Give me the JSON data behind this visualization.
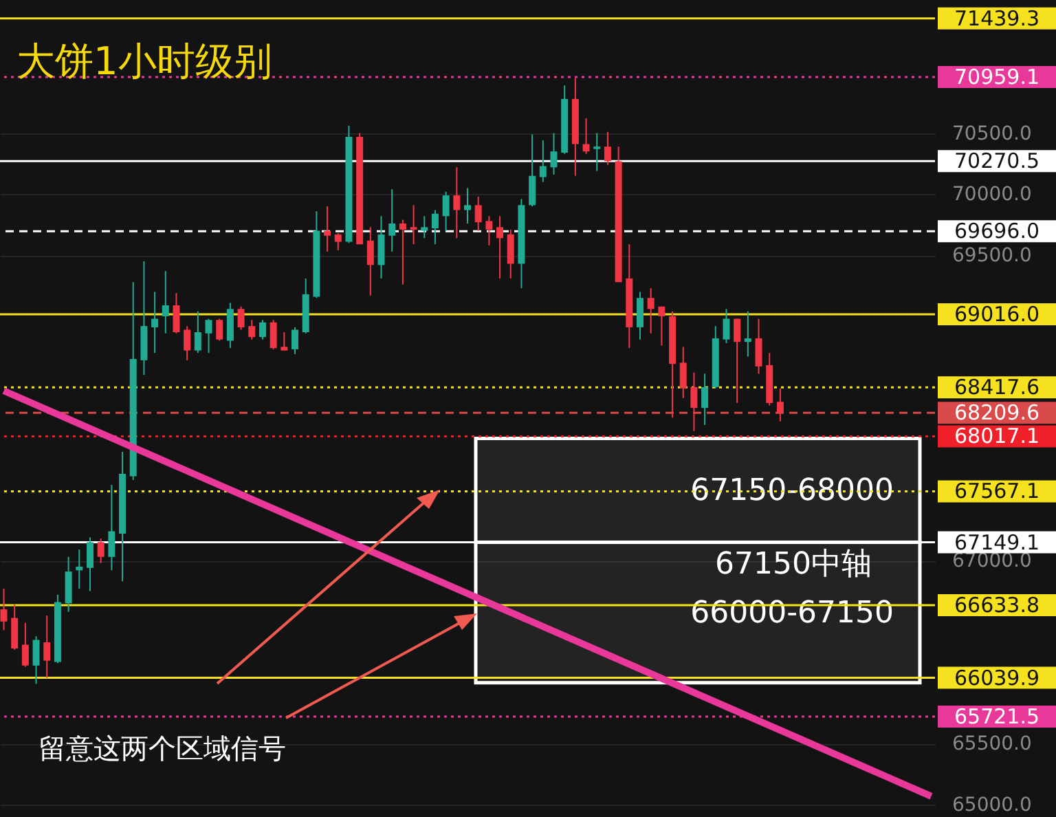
{
  "chart_data": {
    "type": "candlestick",
    "title": "大饼1小时级别",
    "categories": [
      null,
      null,
      null,
      null,
      null,
      null,
      null,
      null,
      null,
      null,
      null,
      null,
      null,
      null,
      null,
      null,
      null,
      null,
      null,
      null,
      null,
      null,
      null,
      null,
      null,
      null,
      null,
      null,
      null,
      null,
      null,
      null,
      null,
      null,
      null,
      null,
      null,
      null,
      null,
      null,
      null,
      null,
      null,
      null,
      null,
      null,
      null,
      null,
      null,
      null,
      null,
      null,
      null,
      null,
      null,
      null,
      null,
      null,
      null,
      null,
      null,
      null,
      null,
      null,
      null,
      null,
      null,
      null,
      null,
      null,
      null,
      null,
      null,
      null,
      null,
      null,
      null,
      null,
      null,
      null,
      null,
      null,
      null,
      null,
      null,
      null,
      null
    ],
    "ohlc": [
      [
        66600,
        66770,
        66430,
        66500
      ],
      [
        66530,
        66640,
        66270,
        66280
      ],
      [
        66310,
        66490,
        66130,
        66140
      ],
      [
        66140,
        66380,
        65990,
        66350
      ],
      [
        66330,
        66550,
        66040,
        66180
      ],
      [
        66170,
        66720,
        66160,
        66660
      ],
      [
        66650,
        67030,
        66580,
        66910
      ],
      [
        66920,
        67090,
        66770,
        66950
      ],
      [
        66940,
        67190,
        66750,
        67150
      ],
      [
        67150,
        67180,
        66980,
        67030
      ],
      [
        67030,
        67620,
        66920,
        67240
      ],
      [
        67220,
        67890,
        66830,
        67710
      ],
      [
        67690,
        69280,
        67660,
        68650
      ],
      [
        68640,
        69450,
        68520,
        68920
      ],
      [
        68910,
        69200,
        68700,
        68980
      ],
      [
        69000,
        69370,
        68860,
        69090
      ],
      [
        69090,
        69190,
        68860,
        68870
      ],
      [
        68890,
        68920,
        68640,
        68720
      ],
      [
        68720,
        69040,
        68700,
        68870
      ],
      [
        68860,
        68980,
        68700,
        68970
      ],
      [
        68970,
        68980,
        68800,
        68810
      ],
      [
        68800,
        69110,
        68740,
        69060
      ],
      [
        69060,
        69080,
        68890,
        68910
      ],
      [
        68920,
        68970,
        68810,
        68830
      ],
      [
        68830,
        68970,
        68810,
        68950
      ],
      [
        68950,
        68970,
        68730,
        68740
      ],
      [
        68750,
        68870,
        68720,
        68720
      ],
      [
        68730,
        68910,
        68690,
        68890
      ],
      [
        68870,
        69310,
        68860,
        69180
      ],
      [
        69160,
        69860,
        69150,
        69700
      ],
      [
        69700,
        69900,
        69530,
        69660
      ],
      [
        69670,
        69680,
        69540,
        69610
      ],
      [
        69610,
        70560,
        69600,
        70470
      ],
      [
        70470,
        70500,
        69590,
        69590
      ],
      [
        69620,
        69730,
        69170,
        69420
      ],
      [
        69420,
        69820,
        69310,
        69670
      ],
      [
        69660,
        70040,
        69530,
        69760
      ],
      [
        69760,
        69790,
        69260,
        69710
      ],
      [
        69730,
        69910,
        69590,
        69710
      ],
      [
        69700,
        69820,
        69640,
        69730
      ],
      [
        69720,
        69870,
        69590,
        69840
      ],
      [
        69820,
        70020,
        69700,
        69990
      ],
      [
        69990,
        70220,
        69640,
        69870
      ],
      [
        69870,
        70050,
        69760,
        69910
      ],
      [
        69910,
        69980,
        69700,
        69770
      ],
      [
        69780,
        69820,
        69580,
        69710
      ],
      [
        69730,
        69820,
        69310,
        69640
      ],
      [
        69670,
        69710,
        69310,
        69430
      ],
      [
        69430,
        69960,
        69230,
        69910
      ],
      [
        69910,
        70490,
        69900,
        70150
      ],
      [
        70140,
        70440,
        70100,
        70230
      ],
      [
        70220,
        70500,
        70160,
        70350
      ],
      [
        70340,
        70890,
        70330,
        70780
      ],
      [
        70780,
        70950,
        70150,
        70410
      ],
      [
        70410,
        70620,
        70330,
        70350
      ],
      [
        70370,
        70500,
        70190,
        70390
      ],
      [
        70390,
        70510,
        70240,
        70270
      ],
      [
        70270,
        70390,
        69280,
        69280
      ],
      [
        69310,
        69590,
        68740,
        68910
      ],
      [
        68910,
        69200,
        68810,
        69150
      ],
      [
        69150,
        69230,
        68860,
        69060
      ],
      [
        69080,
        69080,
        68760,
        69000
      ],
      [
        69000,
        69040,
        68170,
        68610
      ],
      [
        68620,
        68750,
        68330,
        68410
      ],
      [
        68420,
        68540,
        68060,
        68250
      ],
      [
        68250,
        68530,
        68110,
        68420
      ],
      [
        68420,
        68920,
        68410,
        68820
      ],
      [
        68810,
        69060,
        68780,
        68980
      ],
      [
        68980,
        68980,
        68290,
        68790
      ],
      [
        68790,
        69040,
        68670,
        68820
      ],
      [
        68820,
        68980,
        68530,
        68590
      ],
      [
        68600,
        68700,
        68270,
        68290
      ],
      [
        68300,
        68410,
        68140,
        68210
      ],
      null,
      null,
      null,
      null,
      null,
      null,
      null,
      null,
      null,
      null,
      null,
      null,
      null,
      null
    ],
    "colors": [
      "#f23645",
      "#f23645",
      "#f23645",
      "#22ab94",
      "#f23645",
      "#22ab94",
      "#22ab94",
      "#22ab94",
      "#22ab94",
      "#f23645",
      "#22ab94",
      "#22ab94",
      "#22ab94",
      "#22ab94",
      "#22ab94",
      "#22ab94",
      "#f23645",
      "#f23645",
      "#22ab94",
      "#22ab94",
      "#f23645",
      "#22ab94",
      "#f23645",
      "#f23645",
      "#22ab94",
      "#f23645",
      "#f23645",
      "#22ab94",
      "#22ab94",
      "#22ab94",
      "#f23645",
      "#f23645",
      "#22ab94",
      "#f23645",
      "#f23645",
      "#22ab94",
      "#22ab94",
      "#f23645",
      "#f23645",
      "#22ab94",
      "#22ab94",
      "#22ab94",
      "#f23645",
      "#22ab94",
      "#f23645",
      "#f23645",
      "#f23645",
      "#f23645",
      "#22ab94",
      "#22ab94",
      "#22ab94",
      "#22ab94",
      "#22ab94",
      "#f23645",
      "#f23645",
      "#22ab94",
      "#f23645",
      "#f23645",
      "#f23645",
      "#22ab94",
      "#f23645",
      "#f23645",
      "#f23645",
      "#f23645",
      "#f23645",
      "#22ab94",
      "#22ab94",
      "#22ab94",
      "#f23645",
      "#22ab94",
      "#f23645",
      "#f23645",
      "#f23645",
      null,
      null,
      null,
      null,
      null,
      null,
      null,
      null,
      null,
      null,
      null,
      null,
      null,
      null
    ],
    "series": [
      {
        "type": "line",
        "color": "#e8399a",
        "values": [
          68390,
          null,
          null,
          null,
          null,
          null,
          null,
          null,
          null,
          null,
          null,
          null,
          null,
          null,
          null,
          null,
          null,
          null,
          null,
          null,
          null,
          null,
          null,
          null,
          null,
          null,
          null,
          null,
          null,
          null,
          null,
          null,
          null,
          null,
          null,
          null,
          null,
          null,
          null,
          null,
          null,
          null,
          null,
          null,
          null,
          null,
          null,
          null,
          null,
          null,
          null,
          null,
          null,
          null,
          null,
          null,
          null,
          null,
          null,
          null,
          null,
          null,
          null,
          null,
          null,
          null,
          null,
          null,
          null,
          null,
          null,
          null,
          null,
          null,
          null,
          null,
          null,
          null,
          null,
          null,
          null,
          null,
          null,
          null,
          null,
          null,
          65070
        ]
      }
    ],
    "ylim": [
      64900,
      71590
    ],
    "yticks": [
      {
        "value": 65000,
        "label": "65000.0"
      },
      {
        "value": 65500,
        "label": "65500.0"
      },
      {
        "value": 67000,
        "label": "67000.0"
      },
      {
        "value": 69500,
        "label": "69500.0"
      },
      {
        "value": 70000,
        "label": "70000.0"
      },
      {
        "value": 70500,
        "label": "70500.0"
      }
    ],
    "grid": "y",
    "tick_labels": "y",
    "ref_lines": [
      {
        "axis": "y",
        "value": 71439.3,
        "label": "71439.3",
        "color": "#f5e11e",
        "line_style": "solid"
      },
      {
        "axis": "y",
        "value": 70959.1,
        "label": "70959.1",
        "color": "#e8399a",
        "line_style": "dotted"
      },
      {
        "axis": "y",
        "value": 70270.5,
        "label": "70270.5",
        "color": "#ffffff",
        "line_style": "solid"
      },
      {
        "axis": "y",
        "value": 69696.0,
        "label": "69696.0",
        "color": "#ffffff",
        "line_style": "dashed"
      },
      {
        "axis": "y",
        "value": 69016.0,
        "label": "69016.0",
        "color": "#f5e11e",
        "line_style": "solid"
      },
      {
        "axis": "y",
        "value": 68417.6,
        "label": "68417.6",
        "color": "#f5e11e",
        "line_style": "dotted"
      },
      {
        "axis": "y",
        "value": 68209.6,
        "label": "68209.6",
        "color": "#d94a4a",
        "line_style": "dashed"
      },
      {
        "axis": "y",
        "value": 68017.1,
        "label": "68017.1",
        "color": "#f0202a",
        "line_style": "dotted"
      },
      {
        "axis": "y",
        "value": 67567.1,
        "label": "67567.1",
        "color": "#f5e11e",
        "line_style": "dotted"
      },
      {
        "axis": "y",
        "value": 67149.1,
        "label": "67149.1",
        "color": "#ffffff",
        "line_style": "solid"
      },
      {
        "axis": "y",
        "value": 66633.8,
        "label": "66633.8",
        "color": "#f5e11e",
        "line_style": "solid"
      },
      {
        "axis": "y",
        "value": 66039.9,
        "label": "66039.9",
        "color": "#f5e11e",
        "line_style": "solid"
      },
      {
        "axis": "y",
        "value": 65721.5,
        "label": "65721.5",
        "color": "#e8399a",
        "line_style": "dotted"
      }
    ],
    "bands": [
      {
        "axis": "y",
        "from": 67150,
        "to": 68000,
        "label": "67150-68000",
        "color": "#ffffff"
      },
      {
        "axis": "y",
        "from": 66000,
        "to": 67150,
        "label": "66000-67150",
        "color": "#ffffff"
      }
    ],
    "annotations": [
      {
        "text": "67150中轴",
        "y": 67150
      },
      "留意这两个区域信号"
    ]
  }
}
